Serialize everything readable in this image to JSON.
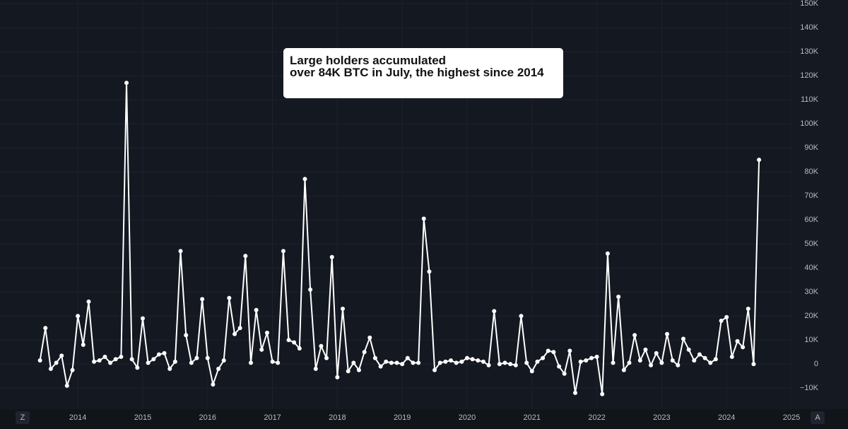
{
  "chart_data": {
    "type": "line",
    "annotation": "Large holders accumulated\nover 84K BTC in July, the highest since 2014",
    "x": [
      2013.417,
      2013.5,
      2013.583,
      2013.667,
      2013.75,
      2013.833,
      2013.917,
      2014.0,
      2014.083,
      2014.167,
      2014.25,
      2014.333,
      2014.417,
      2014.5,
      2014.583,
      2014.667,
      2014.75,
      2014.833,
      2014.917,
      2015.0,
      2015.083,
      2015.167,
      2015.25,
      2015.333,
      2015.417,
      2015.5,
      2015.583,
      2015.667,
      2015.75,
      2015.833,
      2015.917,
      2016.0,
      2016.083,
      2016.167,
      2016.25,
      2016.333,
      2016.417,
      2016.5,
      2016.583,
      2016.667,
      2016.75,
      2016.833,
      2016.917,
      2017.0,
      2017.083,
      2017.167,
      2017.25,
      2017.333,
      2017.417,
      2017.5,
      2017.583,
      2017.667,
      2017.75,
      2017.833,
      2017.917,
      2018.0,
      2018.083,
      2018.167,
      2018.25,
      2018.333,
      2018.417,
      2018.5,
      2018.583,
      2018.667,
      2018.75,
      2018.833,
      2018.917,
      2019.0,
      2019.083,
      2019.167,
      2019.25,
      2019.333,
      2019.417,
      2019.5,
      2019.583,
      2019.667,
      2019.75,
      2019.833,
      2019.917,
      2020.0,
      2020.083,
      2020.167,
      2020.25,
      2020.333,
      2020.417,
      2020.5,
      2020.583,
      2020.667,
      2020.75,
      2020.833,
      2020.917,
      2021.0,
      2021.083,
      2021.167,
      2021.25,
      2021.333,
      2021.417,
      2021.5,
      2021.583,
      2021.667,
      2021.75,
      2021.833,
      2021.917,
      2022.0,
      2022.083,
      2022.167,
      2022.25,
      2022.333,
      2022.417,
      2022.5,
      2022.583,
      2022.667,
      2022.75,
      2022.833,
      2022.917,
      2023.0,
      2023.083,
      2023.167,
      2023.25,
      2023.333,
      2023.417,
      2023.5,
      2023.583,
      2023.667,
      2023.75,
      2023.833,
      2023.917,
      2024.0,
      2024.083,
      2024.167,
      2024.25,
      2024.333,
      2024.417,
      2024.5
    ],
    "series": [
      {
        "color": "#ffffff",
        "values": [
          1500,
          15000,
          -2000,
          500,
          3500,
          -9000,
          -2500,
          20000,
          8000,
          26000,
          1000,
          1500,
          3000,
          500,
          2000,
          3000,
          117000,
          2000,
          -1500,
          19000,
          500,
          2000,
          4000,
          4500,
          -2000,
          1000,
          47000,
          12000,
          500,
          2500,
          27000,
          2500,
          -8500,
          -2000,
          1500,
          27500,
          12500,
          15000,
          45000,
          500,
          22500,
          6000,
          13000,
          1000,
          500,
          47000,
          10000,
          9000,
          6500,
          77000,
          31000,
          -2000,
          7500,
          2500,
          44500,
          -5500,
          23000,
          -3000,
          500,
          -2500,
          5000,
          11000,
          2500,
          -1000,
          1000,
          500,
          500,
          0,
          2500,
          500,
          500,
          60500,
          38500,
          -2500,
          500,
          1000,
          1500,
          500,
          1000,
          2500,
          2000,
          1500,
          1000,
          -500,
          22000,
          0,
          500,
          0,
          -500,
          20000,
          500,
          -3000,
          1000,
          2500,
          5500,
          5000,
          -1000,
          -4000,
          5500,
          -12000,
          1000,
          1500,
          2500,
          3000,
          -12500,
          46000,
          500,
          28000,
          -2500,
          500,
          12000,
          1500,
          6000,
          -500,
          4500,
          500,
          12500,
          1500,
          -500,
          10500,
          6000,
          1500,
          4000,
          2500,
          500,
          2000,
          18000,
          19500,
          3000,
          9500,
          7000,
          23000,
          0,
          85000
        ]
      }
    ],
    "xlim": [
      2012.8,
      2025.0
    ],
    "xticks": [
      2014,
      2015,
      2016,
      2017,
      2018,
      2019,
      2020,
      2021,
      2022,
      2023,
      2024,
      2025
    ],
    "ylim": [
      -18500,
      151500
    ],
    "yticks": [
      {
        "value": -10000,
        "label": "−10K"
      },
      0,
      {
        "value": 10000,
        "label": "10K"
      },
      {
        "value": 20000,
        "label": "20K"
      },
      {
        "value": 30000,
        "label": "30K"
      },
      {
        "value": 40000,
        "label": "40K"
      },
      {
        "value": 50000,
        "label": "50K"
      },
      {
        "value": 60000,
        "label": "60K"
      },
      {
        "value": 70000,
        "label": "70K"
      },
      {
        "value": 80000,
        "label": "80K"
      },
      {
        "value": 90000,
        "label": "90K"
      },
      {
        "value": 100000,
        "label": "100K"
      },
      {
        "value": 110000,
        "label": "110K"
      },
      {
        "value": 120000,
        "label": "120K"
      },
      {
        "value": 130000,
        "label": "130K"
      },
      {
        "value": 140000,
        "label": "140K"
      },
      {
        "value": 150000,
        "label": "150K"
      }
    ],
    "grid": true
  },
  "ui": {
    "left_button": "Z",
    "right_button": "A"
  }
}
